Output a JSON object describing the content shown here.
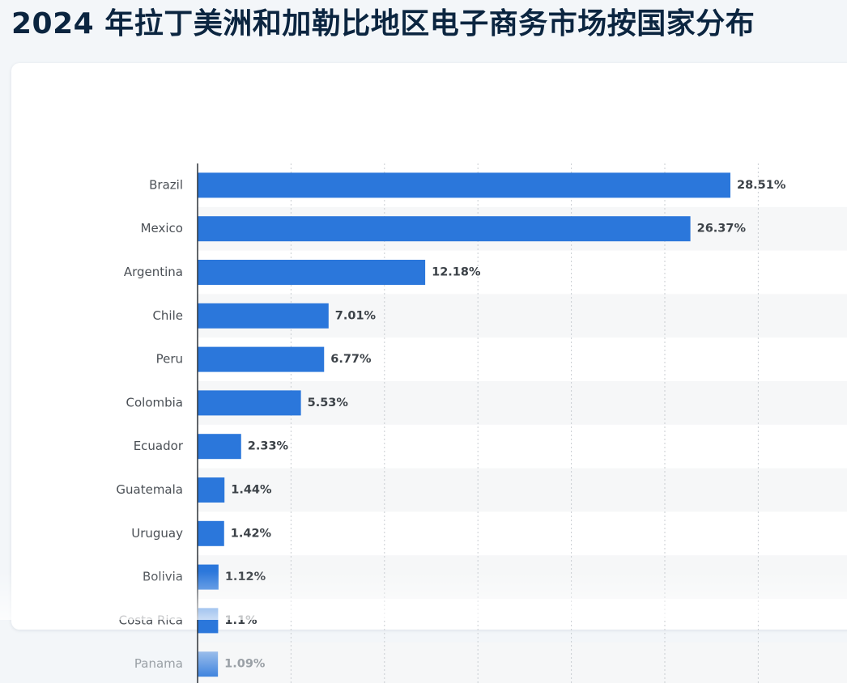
{
  "page": {
    "title": "2024 年拉丁美洲和加勒比地区电子商务市场按国家分布"
  },
  "colors": {
    "bar": "#2b77db",
    "title": "#0b2540",
    "category_label": "#4a4f55",
    "value_label": "#3c4248",
    "row_band": "#f6f7f8",
    "grid": "#c9cdd2",
    "axis": "#2f3338"
  },
  "chart_data": {
    "type": "bar",
    "orientation": "horizontal",
    "title": "2024 年拉丁美洲和加勒比地区电子商务市场按国家分布",
    "xlabel": "",
    "ylabel": "",
    "unit": "%",
    "xlim": [
      0,
      35
    ],
    "grid": true,
    "categories": [
      "Brazil",
      "Mexico",
      "Argentina",
      "Chile",
      "Peru",
      "Colombia",
      "Ecuador",
      "Guatemala",
      "Uruguay",
      "Bolivia",
      "Costa Rica",
      "Panama"
    ],
    "values": [
      28.51,
      26.37,
      12.18,
      7.01,
      6.77,
      5.53,
      2.33,
      1.44,
      1.42,
      1.12,
      1.1,
      1.09
    ],
    "value_labels": [
      "28.51%",
      "26.37%",
      "12.18%",
      "7.01%",
      "6.77%",
      "5.53%",
      "2.33%",
      "1.44%",
      "1.42%",
      "1.12%",
      "1.1%",
      "1.09%"
    ]
  }
}
